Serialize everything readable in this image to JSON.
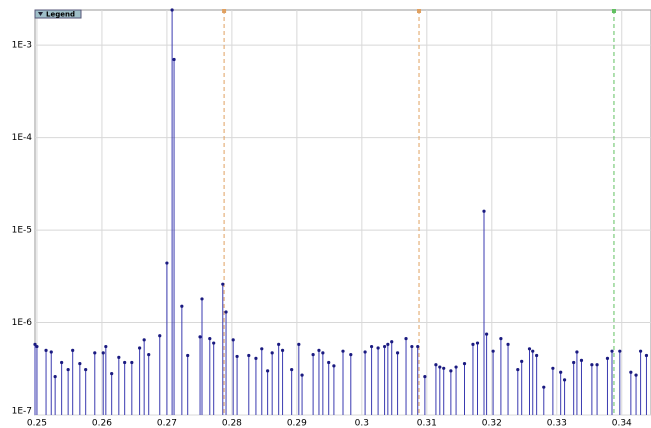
{
  "chart_data": {
    "type": "stem",
    "legend_button": "Legend",
    "log_y": true,
    "grid": true,
    "color": "#3a3ab0",
    "xlim": [
      0.2497,
      0.3445
    ],
    "ylim": [
      1e-07,
      0.0024
    ],
    "xticks": [
      0.25,
      0.26,
      0.27,
      0.28,
      0.29,
      0.3,
      0.31,
      0.32,
      0.33,
      0.34
    ],
    "yticks": [
      {
        "value": 1e-07,
        "label": "1E-7"
      },
      {
        "value": 1e-06,
        "label": "1E-6"
      },
      {
        "value": 1e-05,
        "label": "1E-5"
      },
      {
        "value": 0.0001,
        "label": "1E-4"
      },
      {
        "value": 0.001,
        "label": "1E-3"
      }
    ],
    "markers": [
      {
        "x": 0.2788,
        "color": "#e0a060"
      },
      {
        "x": 0.3088,
        "color": "#e0a060"
      },
      {
        "x": 0.3388,
        "color": "#60c060"
      }
    ],
    "x": [
      0.2497,
      0.25,
      0.2514,
      0.2522,
      0.2528,
      0.2538,
      0.2548,
      0.2555,
      0.2566,
      0.2575,
      0.2589,
      0.2602,
      0.2606,
      0.2615,
      0.2626,
      0.2635,
      0.2646,
      0.2658,
      0.2665,
      0.2672,
      0.2689,
      0.27,
      0.2708,
      0.2711,
      0.2723,
      0.2732,
      0.2751,
      0.2754,
      0.2766,
      0.2772,
      0.2786,
      0.2791,
      0.2802,
      0.2808,
      0.2826,
      0.2837,
      0.2846,
      0.2855,
      0.2862,
      0.2872,
      0.2878,
      0.2892,
      0.2903,
      0.2908,
      0.2925,
      0.2934,
      0.294,
      0.2949,
      0.2957,
      0.2971,
      0.2983,
      0.3005,
      0.3015,
      0.3025,
      0.3035,
      0.304,
      0.3046,
      0.3055,
      0.3068,
      0.3077,
      0.3086,
      0.3097,
      0.3114,
      0.312,
      0.3126,
      0.3137,
      0.3145,
      0.3158,
      0.3171,
      0.3178,
      0.3188,
      0.3192,
      0.3202,
      0.3214,
      0.3225,
      0.324,
      0.3246,
      0.3258,
      0.3263,
      0.3269,
      0.328,
      0.3294,
      0.3306,
      0.3312,
      0.3326,
      0.3331,
      0.3338,
      0.3354,
      0.3362,
      0.3378,
      0.3385,
      0.3397,
      0.3414,
      0.3422,
      0.3429,
      0.3438
    ],
    "values": [
      5.8e-07,
      5.5e-07,
      5e-07,
      4.8e-07,
      2.6e-07,
      3.7e-07,
      3.1e-07,
      5e-07,
      3.6e-07,
      3.1e-07,
      4.7e-07,
      4.7e-07,
      5.5e-07,
      2.8e-07,
      4.2e-07,
      3.7e-07,
      3.7e-07,
      5.3e-07,
      6.5e-07,
      4.5e-07,
      7.2e-07,
      4.4e-06,
      0.0024,
      0.0007,
      1.5e-06,
      4.4e-07,
      7e-07,
      1.8e-06,
      6.7e-07,
      6e-07,
      2.6e-06,
      1.3e-06,
      6.5e-07,
      4.3e-07,
      4.4e-07,
      4.1e-07,
      5.2e-07,
      3e-07,
      4.7e-07,
      5.8e-07,
      5e-07,
      3.1e-07,
      5.8e-07,
      2.7e-07,
      4.5e-07,
      5e-07,
      4.7e-07,
      3.7e-07,
      3.4e-07,
      4.9e-07,
      4.5e-07,
      4.8e-07,
      5.5e-07,
      5.3e-07,
      5.5e-07,
      5.8e-07,
      6.2e-07,
      4.7e-07,
      6.7e-07,
      5.5e-07,
      5.5e-07,
      2.6e-07,
      3.5e-07,
      3.3e-07,
      3.2e-07,
      3e-07,
      3.3e-07,
      3.6e-07,
      5.8e-07,
      6e-07,
      1.6e-05,
      7.5e-07,
      4.9e-07,
      6.7e-07,
      5.8e-07,
      3.1e-07,
      3.8e-07,
      5.2e-07,
      4.9e-07,
      4.4e-07,
      2e-07,
      3.2e-07,
      2.9e-07,
      2.4e-07,
      3.7e-07,
      4.8e-07,
      3.9e-07,
      3.5e-07,
      3.5e-07,
      4.1e-07,
      4.9e-07,
      4.9e-07,
      2.9e-07,
      2.7e-07,
      4.9e-07,
      4.4e-07
    ]
  }
}
